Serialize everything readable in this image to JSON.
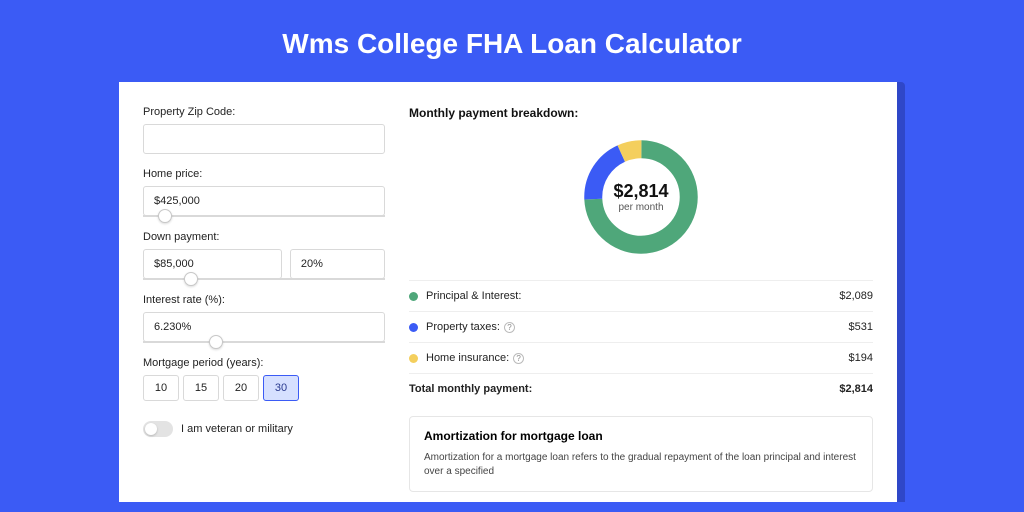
{
  "title": "Wms College FHA Loan Calculator",
  "colors": {
    "page_bg": "#3b5bf5",
    "panel_shadow": "#2f47c8",
    "panel_bg": "#ffffff",
    "border": "#d9d9d9"
  },
  "form": {
    "zip": {
      "label": "Property Zip Code:",
      "value": ""
    },
    "price": {
      "label": "Home price:",
      "value": "$425,000",
      "slider_pct": 9
    },
    "down": {
      "label": "Down payment:",
      "amount": "$85,000",
      "percent": "20%",
      "slider_pct": 20
    },
    "rate": {
      "label": "Interest rate (%):",
      "value": "6.230%",
      "slider_pct": 30
    },
    "period": {
      "label": "Mortgage period (years):",
      "options": [
        "10",
        "15",
        "20",
        "30"
      ],
      "selected": "30"
    },
    "veteran": {
      "label": "I am veteran or military",
      "on": false
    }
  },
  "breakdown": {
    "title": "Monthly payment breakdown:",
    "donut": {
      "amount": "$2,814",
      "sub": "per month",
      "slices": [
        {
          "key": "pi",
          "color": "#4fa77a",
          "pct": 74.2
        },
        {
          "key": "tax",
          "color": "#3b5bf5",
          "pct": 18.9
        },
        {
          "key": "ins",
          "color": "#f4cf5d",
          "pct": 6.9
        }
      ],
      "thickness": 18
    },
    "rows": [
      {
        "swatch": "#4fa77a",
        "label": "Principal & Interest:",
        "info": false,
        "value": "$2,089"
      },
      {
        "swatch": "#3b5bf5",
        "label": "Property taxes:",
        "info": true,
        "value": "$531"
      },
      {
        "swatch": "#f4cf5d",
        "label": "Home insurance:",
        "info": true,
        "value": "$194"
      }
    ],
    "total": {
      "label": "Total monthly payment:",
      "value": "$2,814"
    }
  },
  "amort": {
    "title": "Amortization for mortgage loan",
    "text": "Amortization for a mortgage loan refers to the gradual repayment of the loan principal and interest over a specified"
  }
}
